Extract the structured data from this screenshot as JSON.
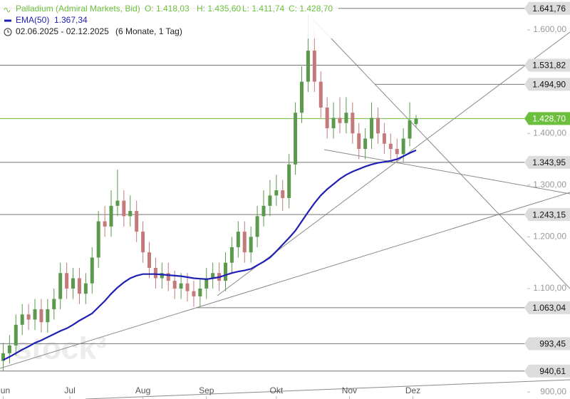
{
  "chart_data": {
    "type": "candlestick",
    "title": "Palladium (Admiral Markets, Bid)",
    "ohlc_labels": [
      "O: 1.418,03",
      "H: 1.435,60",
      "L: 1.411,74",
      "C: 1.428,70"
    ],
    "date_range": "02.06.2025 - 02.12.2025",
    "period": "(6 Monate, 1 Tag)",
    "watermark": "stock³",
    "up_color": "#5b9a4c",
    "down_color": "#c47a7a",
    "x": [
      0,
      2,
      4,
      6,
      8,
      10,
      12,
      14,
      16,
      18,
      20,
      22,
      24,
      26,
      28,
      30,
      32,
      34,
      36,
      38,
      40,
      42,
      44,
      46,
      48,
      50,
      52,
      54,
      56,
      58,
      60,
      62,
      64,
      66,
      68,
      70,
      72,
      74,
      76,
      78,
      80,
      82,
      84,
      86,
      88,
      90,
      92,
      94,
      96,
      98,
      100,
      102,
      104,
      106,
      108,
      110,
      112,
      114,
      116,
      118,
      120,
      122,
      124,
      126,
      128,
      130
    ],
    "open": [
      960,
      975,
      990,
      1030,
      1050,
      1040,
      1060,
      1035,
      1060,
      1080,
      1130,
      1100,
      1120,
      1090,
      1110,
      1160,
      1230,
      1220,
      1260,
      1270,
      1240,
      1250,
      1210,
      1170,
      1140,
      1120,
      1130,
      1115,
      1100,
      1110,
      1095,
      1085,
      1100,
      1120,
      1130,
      1115,
      1150,
      1180,
      1210,
      1170,
      1200,
      1240,
      1260,
      1280,
      1290,
      1275,
      1340,
      1440,
      1500,
      1560,
      1500,
      1450,
      1410,
      1430,
      1420,
      1440,
      1400,
      1370,
      1390,
      1430,
      1400,
      1380,
      1370,
      1360,
      1390,
      1418.03
    ],
    "high": [
      995,
      1010,
      1050,
      1070,
      1070,
      1080,
      1080,
      1080,
      1100,
      1150,
      1150,
      1140,
      1140,
      1130,
      1180,
      1250,
      1260,
      1290,
      1330,
      1290,
      1280,
      1270,
      1230,
      1190,
      1160,
      1150,
      1150,
      1135,
      1130,
      1130,
      1115,
      1120,
      1140,
      1150,
      1150,
      1170,
      1200,
      1230,
      1230,
      1220,
      1260,
      1290,
      1310,
      1320,
      1310,
      1360,
      1460,
      1530,
      1630,
      1600,
      1520,
      1470,
      1460,
      1470,
      1470,
      1460,
      1420,
      1410,
      1460,
      1450,
      1420,
      1400,
      1390,
      1410,
      1460,
      1435.6
    ],
    "low": [
      940,
      955,
      970,
      1010,
      1020,
      1020,
      1015,
      1015,
      1040,
      1060,
      1080,
      1080,
      1070,
      1070,
      1090,
      1140,
      1200,
      1200,
      1240,
      1220,
      1220,
      1190,
      1150,
      1120,
      1100,
      1100,
      1095,
      1080,
      1080,
      1075,
      1065,
      1065,
      1080,
      1100,
      1095,
      1095,
      1130,
      1160,
      1150,
      1150,
      1180,
      1220,
      1240,
      1260,
      1250,
      1255,
      1320,
      1420,
      1480,
      1480,
      1430,
      1390,
      1390,
      1400,
      1400,
      1380,
      1350,
      1350,
      1370,
      1380,
      1360,
      1350,
      1345,
      1345,
      1375,
      1411.74
    ],
    "close": [
      975,
      990,
      1030,
      1050,
      1040,
      1060,
      1035,
      1060,
      1080,
      1130,
      1100,
      1120,
      1090,
      1110,
      1160,
      1230,
      1220,
      1260,
      1270,
      1240,
      1250,
      1210,
      1170,
      1140,
      1120,
      1130,
      1115,
      1100,
      1110,
      1095,
      1085,
      1100,
      1120,
      1130,
      1115,
      1150,
      1180,
      1210,
      1170,
      1200,
      1240,
      1260,
      1280,
      1290,
      1275,
      1340,
      1440,
      1500,
      1560,
      1500,
      1450,
      1410,
      1430,
      1420,
      1440,
      1400,
      1370,
      1390,
      1430,
      1400,
      1380,
      1370,
      1360,
      1390,
      1425,
      1428.7
    ],
    "ema": {
      "name": "EMA(50)",
      "value_label": "1.367,34",
      "color": "#1f1fb4",
      "values": [
        962,
        968,
        975,
        982,
        988,
        995,
        1000,
        1006,
        1012,
        1018,
        1023,
        1030,
        1038,
        1045,
        1052,
        1064,
        1076,
        1090,
        1102,
        1112,
        1120,
        1125,
        1128,
        1128,
        1128,
        1127,
        1126,
        1125,
        1124,
        1122,
        1120,
        1119,
        1118,
        1120,
        1122,
        1126,
        1130,
        1133,
        1135,
        1138,
        1145,
        1152,
        1160,
        1172,
        1185,
        1198,
        1212,
        1230,
        1248,
        1265,
        1280,
        1292,
        1302,
        1312,
        1320,
        1326,
        1331,
        1336,
        1340,
        1343,
        1345,
        1347,
        1350,
        1356,
        1362,
        1367.34
      ]
    },
    "levels": [
      {
        "value": 1641.76,
        "label": "1.641,76"
      },
      {
        "value": 1531.82,
        "label": "1.531,82"
      },
      {
        "value": 1494.9,
        "label": "1.494,90",
        "start": 117
      },
      {
        "value": 1428.7,
        "label": "1.428,70",
        "color": "#6cbf3c"
      },
      {
        "value": 1343.95,
        "label": "1.343,95"
      },
      {
        "value": 1243.15,
        "label": "1.243,15"
      },
      {
        "value": 1063.04,
        "label": "1.063,04",
        "start": 61
      },
      {
        "value": 993.45,
        "label": "993,45"
      },
      {
        "value": 940.61,
        "label": "940,61"
      }
    ],
    "xlim": [
      -1,
      165
    ],
    "ylim": [
      886.5,
      1657.9
    ],
    "yticks": [
      {
        "value": 900,
        "label": "900,00"
      },
      {
        "value": 1100,
        "label": "1.100,00"
      },
      {
        "value": 1200,
        "label": "1.200,00"
      },
      {
        "value": 1300,
        "label": "1.300,00"
      },
      {
        "value": 1400,
        "label": "1.400,00"
      },
      {
        "value": 1600,
        "label": "1.600,00"
      }
    ],
    "xticks": [
      {
        "value": 0,
        "label": "Jun"
      },
      {
        "value": 21,
        "label": "Jul"
      },
      {
        "value": 44,
        "label": "Aug"
      },
      {
        "value": 64,
        "label": "Sep"
      },
      {
        "value": 86,
        "label": "Okt"
      },
      {
        "value": 109,
        "label": "Nov"
      },
      {
        "value": 129,
        "label": "Dez"
      }
    ]
  }
}
